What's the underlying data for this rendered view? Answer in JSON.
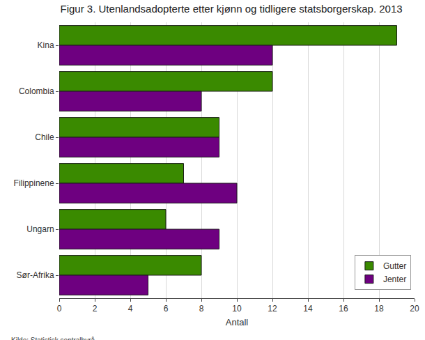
{
  "chart_data": {
    "type": "bar",
    "orientation": "horizontal",
    "title": "Figur 3. Utenlandsadopterte etter kjønn og tidligere statsborgerskap. 2013",
    "source": "Kilde: Statistisk sentralbyrå.",
    "x_label": "Antall",
    "categories": [
      "Kina",
      "Colombia",
      "Chile",
      "Filippinene",
      "Ungarn",
      "Sør-Afrika"
    ],
    "series": [
      {
        "name": "Gutter",
        "color": "#3a8a00",
        "values": [
          19,
          12,
          9,
          7,
          6,
          8
        ]
      },
      {
        "name": "Jenter",
        "color": "#6e0080",
        "values": [
          12,
          8,
          9,
          10,
          9,
          5
        ]
      }
    ],
    "xlim": [
      0,
      20
    ],
    "xticks": [
      0,
      2,
      4,
      6,
      8,
      10,
      12,
      14,
      16,
      18,
      20
    ],
    "grid": true,
    "legend": "bottom right"
  }
}
